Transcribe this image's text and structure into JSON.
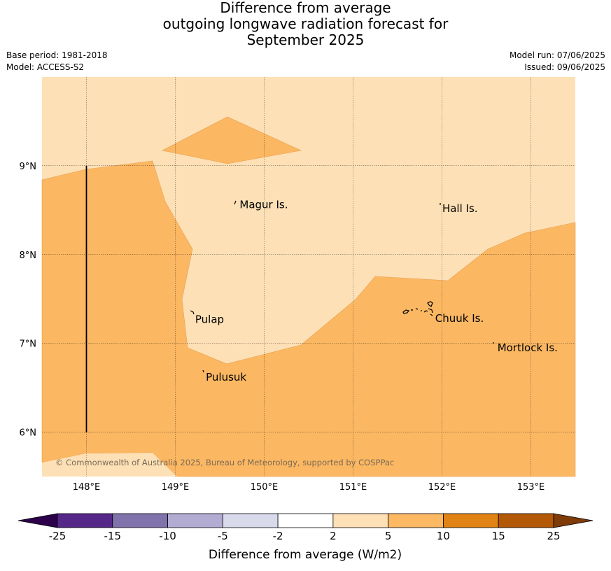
{
  "title": {
    "line1": "Difference from average",
    "line2": "outgoing longwave radiation forecast for",
    "line3": "September 2025"
  },
  "meta": {
    "base_period": "Base period: 1981-2018",
    "model": "Model: ACCESS-S2",
    "model_run": "Model run: 07/06/2025",
    "issued": "Issued: 09/06/2025"
  },
  "map": {
    "lon_range": [
      147.5,
      153.5
    ],
    "lat_range": [
      5.5,
      10.0
    ],
    "lat_ticks": [
      "9°N",
      "8°N",
      "7°N",
      "6°N"
    ],
    "lon_ticks": [
      "148°E",
      "149°E",
      "150°E",
      "151°E",
      "152°E",
      "153°E"
    ],
    "places": [
      {
        "name": "Magur Is.",
        "lon": 149.7,
        "lat": 8.56
      },
      {
        "name": "Hall Is.",
        "lon": 151.98,
        "lat": 8.52
      },
      {
        "name": "Pulap",
        "lon": 149.2,
        "lat": 7.27
      },
      {
        "name": "Chuuk Is.",
        "lon": 151.9,
        "lat": 7.28
      },
      {
        "name": "Mortlock Is.",
        "lon": 152.6,
        "lat": 6.95
      },
      {
        "name": "Pulusuk",
        "lon": 149.32,
        "lat": 6.62
      }
    ],
    "copyright": "© Commonwealth of Australia 2025, Bureau of Meteorology, supported by COSPPac",
    "fill_colors": {
      "band_2_5": "#fde0b6",
      "band_5_10": "#fbb762"
    }
  },
  "colorbar": {
    "label": "Difference from average (W/m2)",
    "ticks": [
      "-25",
      "-15",
      "-10",
      "-5",
      "-2",
      "2",
      "5",
      "10",
      "15",
      "25"
    ],
    "colors": [
      "#2d004b",
      "#542788",
      "#8073ac",
      "#b2abd2",
      "#d8daeb",
      "#ffffff",
      "#fee0b6",
      "#fdb863",
      "#e08214",
      "#b35806",
      "#7f3b08"
    ]
  }
}
